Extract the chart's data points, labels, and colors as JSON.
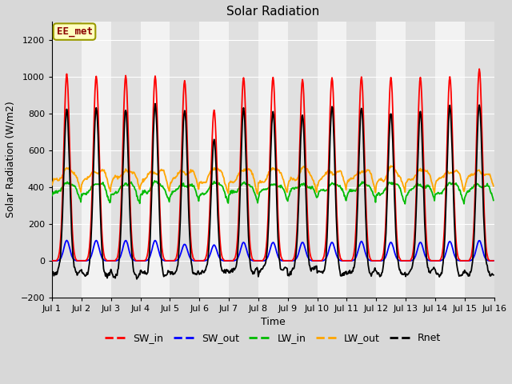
{
  "title": "Solar Radiation",
  "xlabel": "Time",
  "ylabel": "Solar Radiation (W/m2)",
  "annotation": "EE_met",
  "xlim": [
    0,
    15
  ],
  "ylim": [
    -200,
    1300
  ],
  "yticks": [
    -200,
    0,
    200,
    400,
    600,
    800,
    1000,
    1200
  ],
  "xtick_labels": [
    "Jul 1",
    "Jul 2",
    "Jul 3",
    "Jul 4",
    "Jul 5",
    "Jul 6",
    "Jul 7",
    "Jul 8",
    "Jul 9",
    "Jul 10",
    "Jul 11",
    "Jul 12",
    "Jul 13",
    "Jul 14",
    "Jul 15",
    "Jul 16"
  ],
  "n_days": 15,
  "SW_in_peak": [
    1013,
    1005,
    1005,
    1005,
    980,
    820,
    996,
    997,
    985,
    996,
    1000,
    997,
    997,
    1000,
    1045
  ],
  "SW_out_peak": [
    110,
    110,
    110,
    110,
    90,
    85,
    100,
    100,
    100,
    100,
    105,
    100,
    100,
    105,
    110
  ],
  "LW_in_base": 330,
  "LW_in_amp": 90,
  "LW_out_base": 390,
  "LW_out_amp": 105,
  "Rnet_night": -65,
  "colors": {
    "SW_in": "#ff0000",
    "SW_out": "#0000ff",
    "LW_in": "#00bb00",
    "LW_out": "#ffa500",
    "Rnet": "#000000"
  },
  "legend_labels": [
    "SW_in",
    "SW_out",
    "LW_in",
    "LW_out",
    "Rnet"
  ],
  "bg_color": "#d8d8d8",
  "plot_bg_light": "#f2f2f2",
  "plot_bg_dark": "#e0e0e0",
  "grid_color": "#ffffff",
  "title_fontsize": 11,
  "axis_fontsize": 9,
  "tick_fontsize": 8,
  "legend_fontsize": 9
}
